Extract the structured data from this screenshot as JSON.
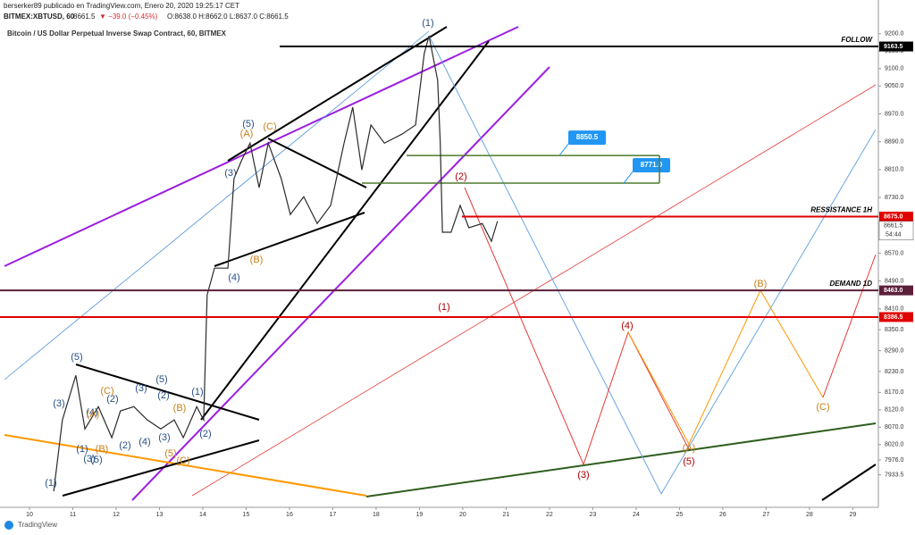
{
  "header": {
    "publisher": "berserker89 publicado en TradingView.com, Enero 20, 2020 19:25:17 CET",
    "symbol": "BITMEX:XBTUSD, 60",
    "last": "8661.5",
    "change": "▼ −39.0 (−0.45%)",
    "ohlc": "O:8638.0 H:8662.0 L:8637.0 C:8661.5"
  },
  "footer": {
    "brand": "TradingView"
  },
  "chart_data": {
    "type": "line",
    "title": "Bitcoin / US Dollar Perpetual Inverse Swap Contract, 60, BITMEX",
    "x": [
      10.56,
      10.76,
      11.07,
      11.28,
      11.59,
      11.9,
      12.1,
      12.41,
      12.72,
      13.03,
      13.34,
      13.55,
      13.86,
      14.02,
      14.1,
      14.27,
      14.58,
      14.72,
      14.89,
      15.09,
      15.3,
      15.51,
      15.81,
      16.02,
      16.33,
      16.64,
      16.95,
      17.26,
      17.46,
      17.67,
      17.88,
      18.19,
      18.6,
      18.91,
      19.11,
      19.22,
      19.42,
      19.48,
      19.53,
      19.73,
      19.94,
      20.14,
      20.45,
      20.66,
      20.8
    ],
    "values": [
      7886,
      8091,
      8219,
      8065,
      8129,
      8040,
      8117,
      8129,
      8091,
      8065,
      8091,
      8040,
      8129,
      8091,
      8450,
      8527,
      8527,
      8784,
      8835,
      8886,
      8758,
      8886,
      8784,
      8681,
      8732,
      8655,
      8707,
      8886,
      8989,
      8809,
      8938,
      8886,
      8912,
      8938,
      9143,
      9194,
      9066,
      8886,
      8630,
      8630,
      8707,
      8643,
      8655,
      8604,
      8661.5
    ],
    "color": "#2b2b2b",
    "xlim": [
      9.32,
      29.59
    ],
    "xticks": [
      10,
      11,
      12,
      13,
      14,
      15,
      16,
      17,
      18,
      19,
      20,
      21,
      22,
      23,
      24,
      25,
      26,
      27,
      28,
      29
    ],
    "ylim": [
      7840,
      9297
    ],
    "yticks": [
      {
        "value": 9200,
        "label": "9200.0"
      },
      {
        "value": 9150,
        "label": "9150.0"
      },
      {
        "value": 9100,
        "label": "9100.0"
      },
      {
        "value": 9050,
        "label": "9050.0"
      },
      {
        "value": 8970,
        "label": "8970.0"
      },
      {
        "value": 8890,
        "label": "8890.0"
      },
      {
        "value": 8810,
        "label": "8810.0"
      },
      {
        "value": 8730,
        "label": "8730.0"
      },
      {
        "value": 8570,
        "label": "8570.0"
      },
      {
        "value": 8490,
        "label": "8490.0"
      },
      {
        "value": 8410,
        "label": "8410.0"
      },
      {
        "value": 8350,
        "label": "8350.0"
      },
      {
        "value": 8290,
        "label": "8290.0"
      },
      {
        "value": 8230,
        "label": "8230.0"
      },
      {
        "value": 8170,
        "label": "8170.0"
      },
      {
        "value": 8120,
        "label": "8120.0"
      },
      {
        "value": 8070,
        "label": "8070.0"
      },
      {
        "value": 8020,
        "label": "8020.0"
      },
      {
        "value": 7976,
        "label": "7976.0"
      },
      7933.5
    ],
    "levels": [
      {
        "price": 9163.5,
        "color": "#000000",
        "note": "FOLLOW"
      },
      {
        "price": {
          "value": 8675,
          "label": "8675.0"
        },
        "color": "#e00000",
        "note": "RESSISTANCE 1H"
      },
      {
        "price": {
          "value": 8463,
          "label": "8463.0"
        },
        "color": "#5c1f3a",
        "note": "DEMAND 1D"
      },
      {
        "price": 8386.5,
        "color": "#e00000"
      }
    ],
    "zones": [
      {
        "price": 8850.5,
        "color": "#2196f3"
      },
      {
        "price": {
          "value": 8771,
          "label": "8771.0"
        },
        "color": "#2196f3"
      }
    ],
    "last_price": 8661.5,
    "countdown": "54:44",
    "wave_labels": [
      "(5)",
      "(3)",
      "(1)",
      "(4)",
      "(2)",
      "(1)",
      "(3)",
      "(5)",
      "(2)",
      "(3)",
      "(5)",
      "(2)",
      "(4)",
      "(3)",
      "(1)",
      "(2)",
      "(5)",
      "(3)",
      "(4)",
      "(1)",
      "(C)",
      "(A)",
      "(B)",
      "(B)",
      "(5)",
      "(C)",
      "(A)",
      "(C)",
      "(B)",
      "(1)",
      "(2)",
      "(3)",
      "(4)",
      "(5)",
      "(A)",
      "(B)",
      "(C)"
    ]
  }
}
